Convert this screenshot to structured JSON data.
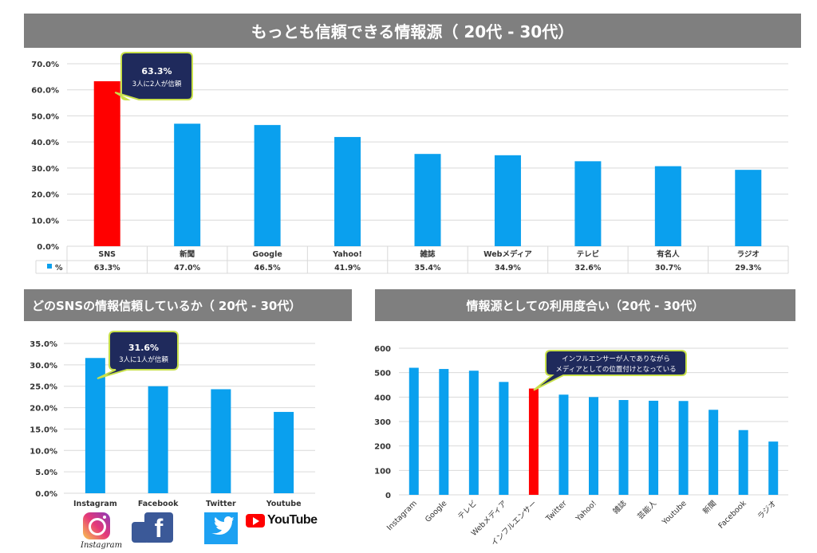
{
  "titles": {
    "top": "もっとも信頼できる情報源（ 20代 - 30代）",
    "left": "どのSNSの情報信頼しているか（ 20代 - 30代）",
    "right": "情報源としての利用度合い（20代 - 30代）"
  },
  "colors": {
    "blue": "#0aa0ee",
    "red": "#ff0000",
    "banner": "#7f7f7f",
    "callout": "#1f2a5c",
    "callout_border": "#c8e04a"
  },
  "chart_data": [
    {
      "type": "bar",
      "title": "もっとも信頼できる情報源（ 20代 - 30代）",
      "categories": [
        "SNS",
        "新聞",
        "Google",
        "Yahoo!",
        "雑誌",
        "Webメディア",
        "テレビ",
        "有名人",
        "ラジオ"
      ],
      "series": [
        {
          "name": "%",
          "values": [
            63.3,
            47.0,
            46.5,
            41.9,
            35.4,
            34.9,
            32.6,
            30.7,
            29.3
          ]
        }
      ],
      "value_labels": [
        "63.3%",
        "47.0%",
        "46.5%",
        "41.9%",
        "35.4%",
        "34.9%",
        "32.6%",
        "30.7%",
        "29.3%"
      ],
      "highlight_index": 0,
      "ylim": [
        0,
        70
      ],
      "yticks": [
        "0.0%",
        "10.0%",
        "20.0%",
        "30.0%",
        "40.0%",
        "50.0%",
        "60.0%",
        "70.0%"
      ],
      "annotation": {
        "value": "63.3%",
        "text": "3人に2人が信頼"
      },
      "data_table": true,
      "grid": true
    },
    {
      "type": "bar",
      "title": "どのSNSの情報信頼しているか（ 20代 - 30代）",
      "categories": [
        "Instagram",
        "Facebook",
        "Twitter",
        "Youtube"
      ],
      "values": [
        31.6,
        25.0,
        24.3,
        19.0
      ],
      "ylim": [
        0,
        35
      ],
      "yticks": [
        "0.0%",
        "5.0%",
        "10.0%",
        "15.0%",
        "20.0%",
        "25.0%",
        "30.0%",
        "35.0%"
      ],
      "annotation": {
        "value": "31.6%",
        "text": "3人に1人が信頼"
      },
      "grid": true
    },
    {
      "type": "bar",
      "title": "情報源としての利用度合い（20代 - 30代）",
      "categories": [
        "Instagram",
        "Google",
        "テレビ",
        "Webメディア",
        "インフルエンサー",
        "Twitter",
        "Yahoo!",
        "雑誌",
        "芸能人",
        "Youtube",
        "新聞",
        "Facebook",
        "ラジオ"
      ],
      "values": [
        520,
        515,
        508,
        462,
        435,
        410,
        400,
        388,
        385,
        384,
        348,
        265,
        218
      ],
      "highlight_index": 4,
      "ylim": [
        0,
        600
      ],
      "yticks": [
        "0",
        "100",
        "200",
        "300",
        "400",
        "500",
        "600"
      ],
      "annotation": {
        "line1": "インフルエンサーが人でありながら",
        "line2": "メディアとしての位置付けとなっている"
      },
      "grid": true
    }
  ],
  "logos": {
    "instagram_caption": "Instagram",
    "facebook_letter": "f",
    "youtube_word": "YouTube"
  }
}
